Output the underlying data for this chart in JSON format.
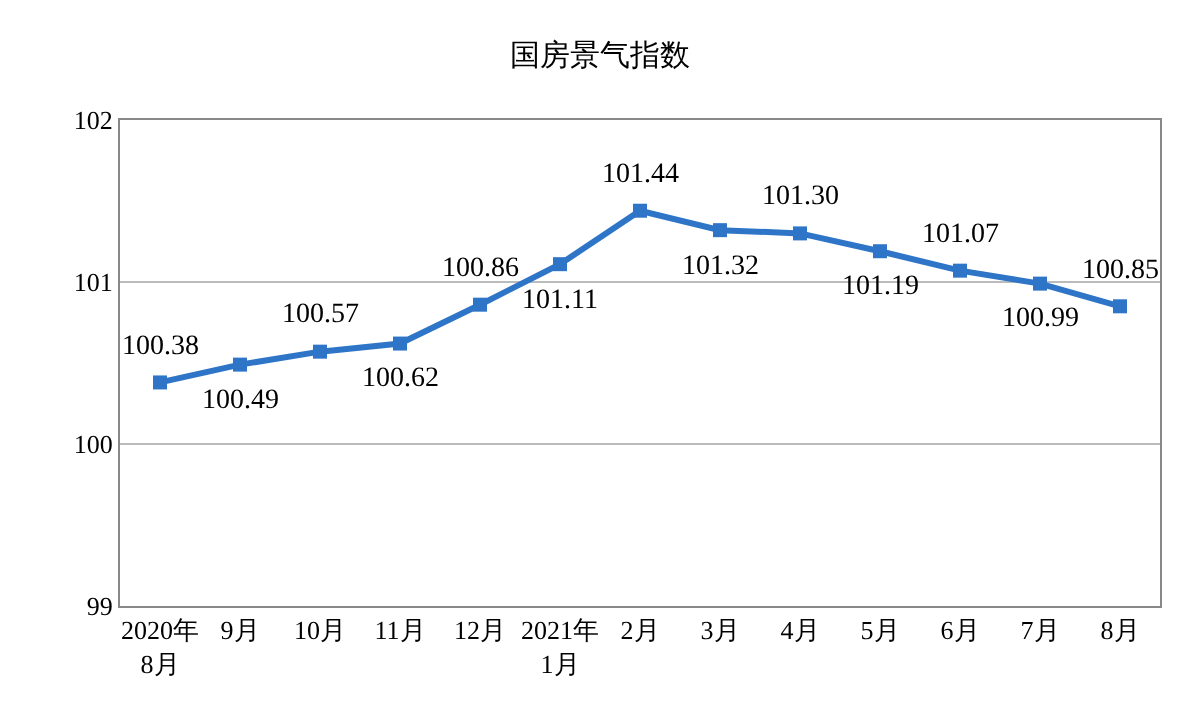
{
  "chart_data": {
    "type": "line",
    "title": "国房景气指数",
    "categories": [
      "2020年\n8月",
      "9月",
      "10月",
      "11月",
      "12月",
      "2021年\n1月",
      "2月",
      "3月",
      "4月",
      "5月",
      "6月",
      "7月",
      "8月"
    ],
    "series": [
      {
        "color": "#2e75c8",
        "values": [
          100.38,
          100.49,
          100.57,
          100.62,
          100.86,
          101.11,
          101.44,
          101.32,
          101.3,
          101.19,
          101.07,
          100.99,
          100.85
        ]
      }
    ],
    "ylim": [
      99,
      102
    ],
    "yticks": [
      99,
      100,
      101,
      102
    ],
    "grid": "y",
    "marker": "square",
    "line_style": "solid",
    "value_labels": [
      "100.38",
      "100.49",
      "100.57",
      "100.62",
      "100.86",
      "101.11",
      "101.44",
      "101.32",
      "101.30",
      "101.19",
      "101.07",
      "100.99",
      "100.85"
    ],
    "legend": false
  }
}
